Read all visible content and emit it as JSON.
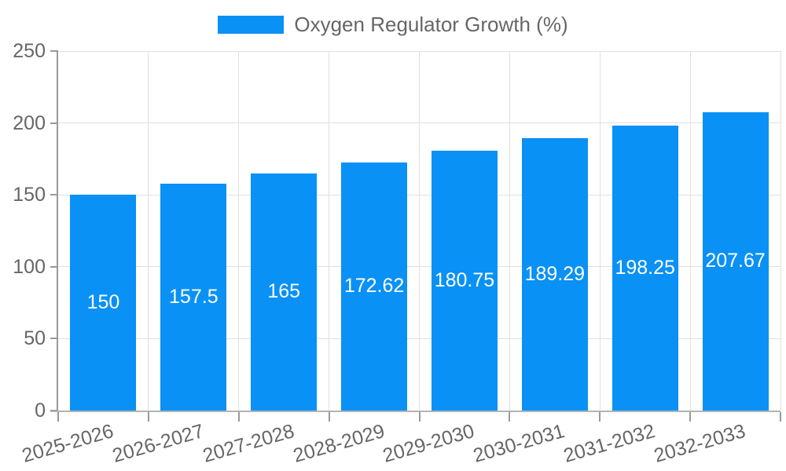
{
  "chart_data": {
    "type": "bar",
    "title": "",
    "legend": {
      "label": "Oxygen Regulator Growth (%)",
      "position": "top"
    },
    "categories": [
      "2025-2026",
      "2026-2027",
      "2027-2028",
      "2028-2029",
      "2029-2030",
      "2030-2031",
      "2031-2032",
      "2032-2033"
    ],
    "series": [
      {
        "name": "Oxygen Regulator Growth (%)",
        "values": [
          150,
          157.5,
          165,
          172.62,
          180.75,
          189.29,
          198.25,
          207.67
        ]
      }
    ],
    "value_labels": [
      "150",
      "157.5",
      "165",
      "172.62",
      "180.75",
      "189.29",
      "198.25",
      "207.67"
    ],
    "xlabel": "",
    "ylabel": "",
    "ylim": [
      0,
      250
    ],
    "ytick_step": 50,
    "yticks": [
      0,
      50,
      100,
      150,
      200,
      250
    ],
    "grid": true,
    "colors": {
      "bar": "#0A91F5",
      "grid": "#E0E0E0",
      "axis": "#999999",
      "baseline": "#B3B3B3",
      "text": "#666666",
      "value_text": "#FFFFFF"
    }
  }
}
